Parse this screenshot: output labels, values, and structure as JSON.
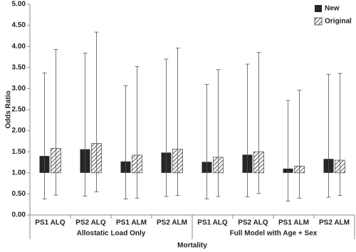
{
  "chart_data": {
    "type": "bar",
    "y_axis_label": "Odds Ratio",
    "x_axis_label": "Mortality",
    "categories": [
      "PS1 ALQ",
      "PS2 ALQ",
      "PS1 ALM",
      "PS2 ALM",
      "PS1 ALQ",
      "PS2 ALQ",
      "PS1 ALM",
      "PS2 ALM"
    ],
    "groups": [
      {
        "label": "Allostatic Load Only",
        "size": 4
      },
      {
        "label": "Full Model with Age + Sex",
        "size": 4
      }
    ],
    "bar_base": 1,
    "ylim": [
      0,
      5
    ],
    "yticks": [
      {
        "value": 0,
        "label": "0.00"
      },
      {
        "value": 0.5,
        "label": "0.50"
      },
      {
        "value": 1,
        "label": "1.00"
      },
      {
        "value": 1.5,
        "label": "1.50"
      },
      {
        "value": 2,
        "label": "2.00"
      },
      {
        "value": 2.5,
        "label": "2.50"
      },
      {
        "value": 3,
        "label": "3.00"
      },
      {
        "value": 3.5,
        "label": "3.50"
      },
      {
        "value": 4,
        "label": "4.00"
      },
      {
        "value": 4.5,
        "label": "4.50"
      },
      {
        "value": 5,
        "label": "5.00"
      }
    ],
    "legend": "top-right",
    "series": [
      {
        "name": "New",
        "color": "#262626",
        "hatch": false,
        "values": [
          1.4,
          1.56,
          1.27,
          1.48,
          1.26,
          1.43,
          1.1,
          1.33
        ],
        "lower": [
          0.38,
          0.45,
          0.38,
          0.44,
          0.38,
          0.43,
          0.33,
          0.42
        ],
        "upper": [
          3.37,
          3.84,
          3.07,
          3.7,
          3.1,
          3.58,
          2.72,
          3.34
        ]
      },
      {
        "name": "Original",
        "color": "#555555",
        "hatch": true,
        "values": [
          1.58,
          1.7,
          1.42,
          1.56,
          1.37,
          1.5,
          1.16,
          1.3
        ],
        "lower": [
          0.47,
          0.55,
          0.4,
          0.46,
          0.44,
          0.51,
          0.4,
          0.46
        ],
        "upper": [
          3.93,
          4.34,
          3.52,
          3.96,
          3.45,
          3.86,
          2.96,
          3.36
        ]
      }
    ]
  }
}
